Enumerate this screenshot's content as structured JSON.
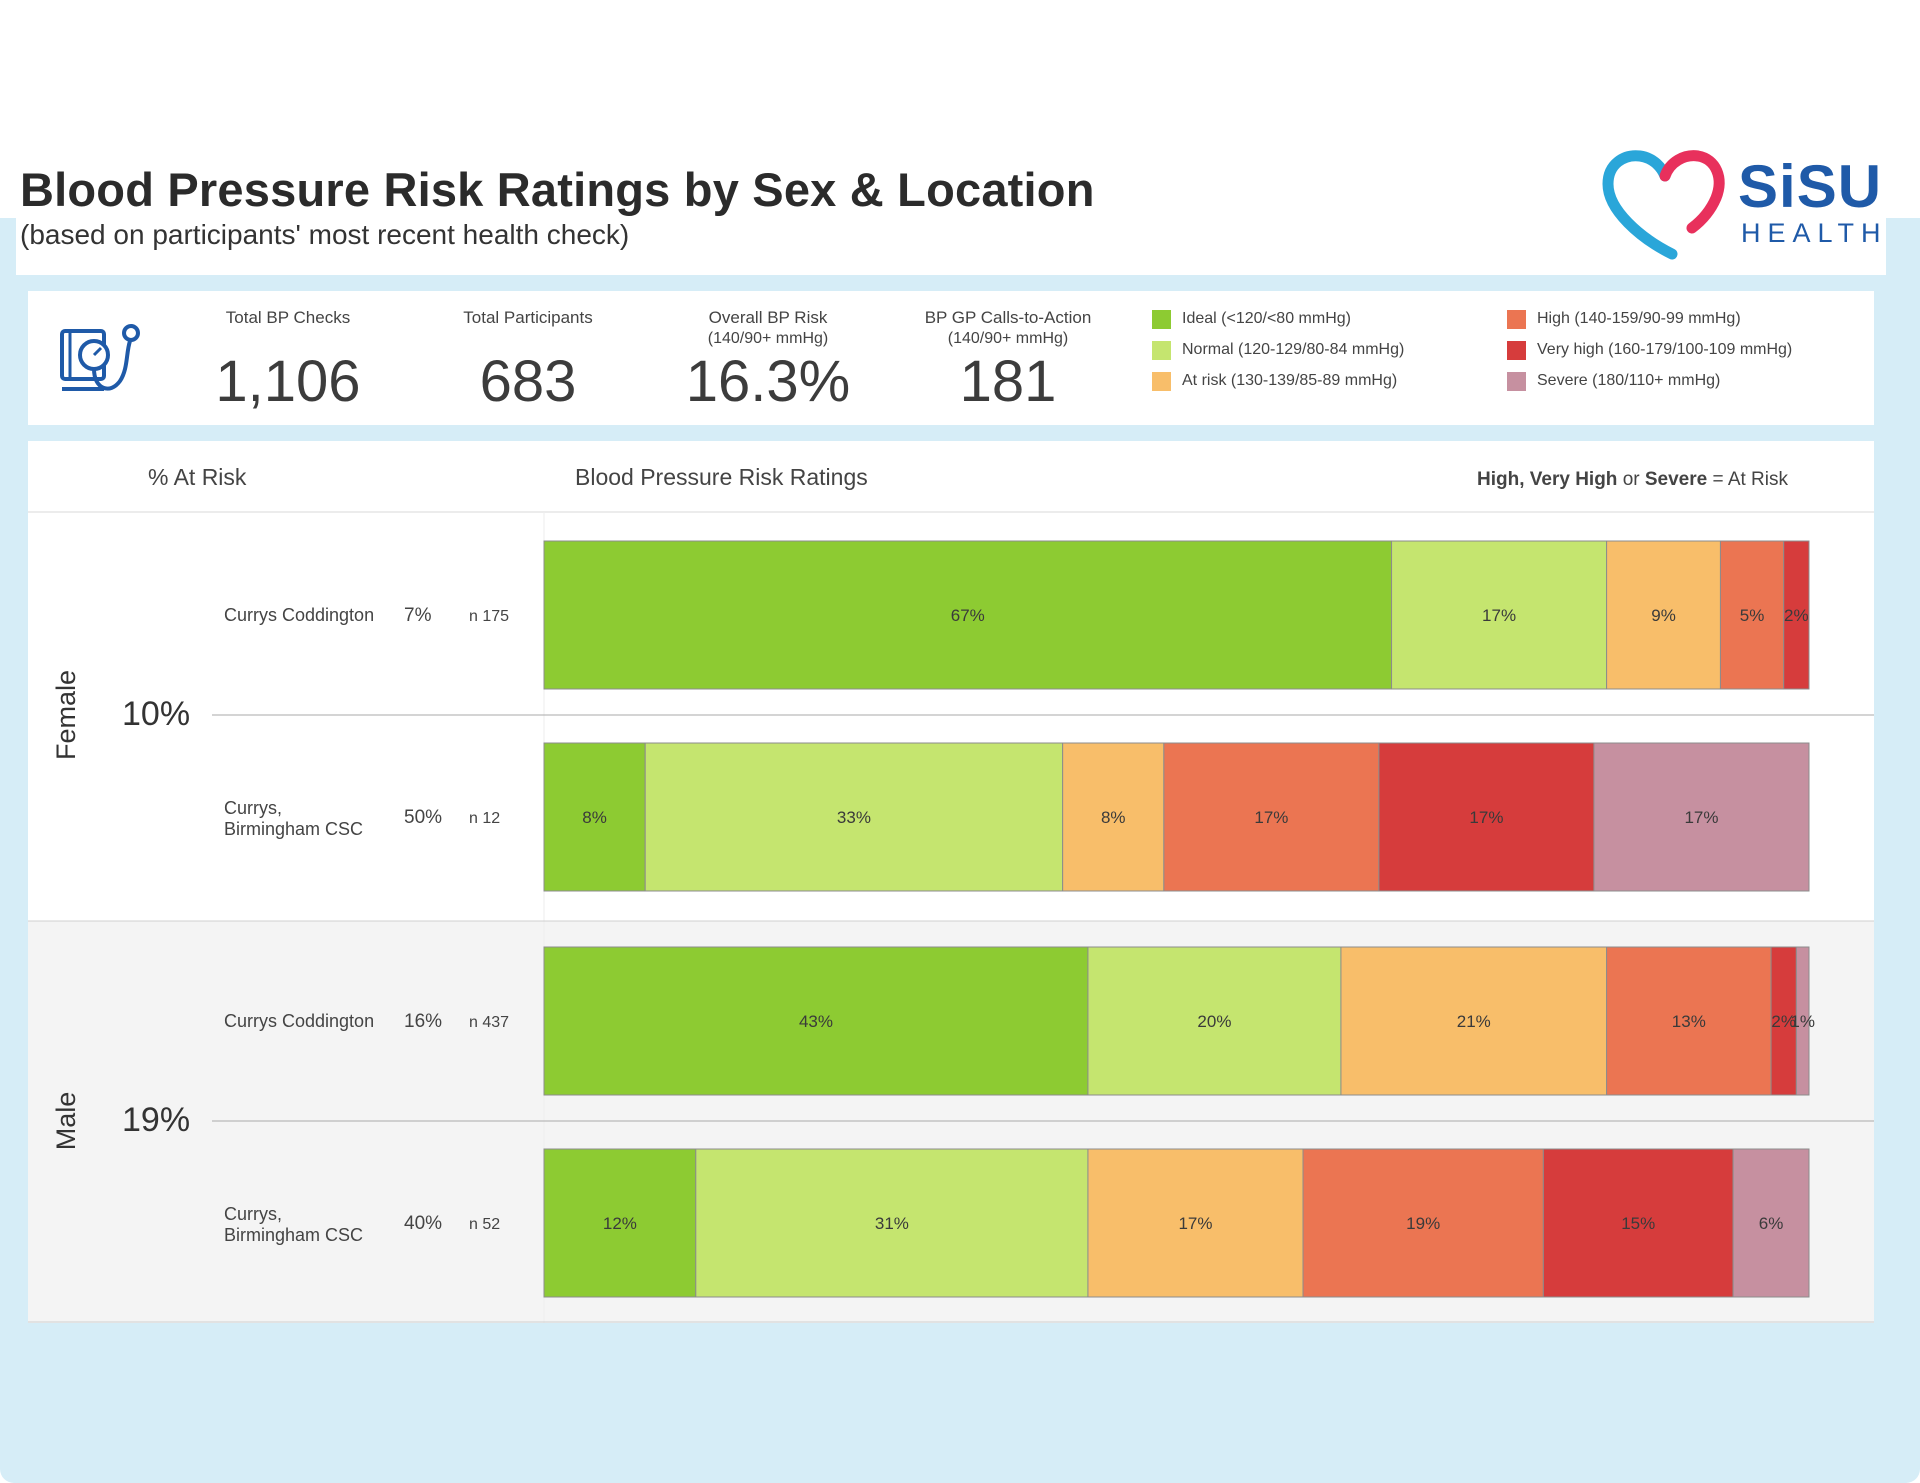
{
  "header": {
    "title": "Blood Pressure Risk Ratings by Sex & Location",
    "subtitle": "(based on participants' most recent health check)",
    "logo_brand": "SiSU",
    "logo_sub": "HEALTH"
  },
  "kpis": [
    {
      "label": "Total BP Checks",
      "sublabel": "",
      "value": "1,106"
    },
    {
      "label": "Total Participants",
      "sublabel": "",
      "value": "683"
    },
    {
      "label": "Overall BP Risk",
      "sublabel": "(140/90+ mmHg)",
      "value": "16.3%"
    },
    {
      "label": "BP GP Calls-to-Action",
      "sublabel": "(140/90+ mmHg)",
      "value": "181"
    }
  ],
  "legend": [
    {
      "label": "Ideal (<120/<80 mmHg)",
      "color": "#8dcb32"
    },
    {
      "label": "Normal (120-129/80-84 mmHg)",
      "color": "#c5e56f"
    },
    {
      "label": "At risk (130-139/85-89 mmHg)",
      "color": "#f8be6a"
    },
    {
      "label": "High (140-159/90-99 mmHg)",
      "color": "#eb7552"
    },
    {
      "label": "Very high (160-179/100-109 mmHg)",
      "color": "#d63c3c"
    },
    {
      "label": "Severe (180/110+ mmHg)",
      "color": "#c690a0"
    }
  ],
  "chart_header": {
    "risk_col": "% At Risk",
    "ratings_col": "Blood Pressure Risk Ratings",
    "note_high": "High, ",
    "note_very": "Very High",
    "note_or": " or ",
    "note_severe": "Severe",
    "note_rest": " = At Risk"
  },
  "chart_data": {
    "type": "bar",
    "orientation": "horizontal",
    "stacked": true,
    "normalized": true,
    "title": "Blood Pressure Risk Ratings",
    "categories": [
      "Ideal",
      "Normal",
      "At risk",
      "High",
      "Very high",
      "Severe"
    ],
    "colors": [
      "#8dcb32",
      "#c5e56f",
      "#f8be6a",
      "#eb7552",
      "#d63c3c",
      "#c690a0"
    ],
    "groups": [
      {
        "sex": "Female",
        "risk": "10%",
        "rows": [
          {
            "location": [
              "Currys Coddington"
            ],
            "risk": "7%",
            "n": "n 175",
            "values": [
              67,
              17,
              9,
              5,
              2,
              0
            ]
          },
          {
            "location": [
              "Currys,",
              "Birmingham CSC"
            ],
            "risk": "50%",
            "n": "n 12",
            "values": [
              8,
              33,
              8,
              17,
              17,
              17
            ]
          }
        ]
      },
      {
        "sex": "Male",
        "risk": "19%",
        "rows": [
          {
            "location": [
              "Currys Coddington"
            ],
            "risk": "16%",
            "n": "n 437",
            "values": [
              43,
              20,
              21,
              13,
              2,
              1
            ]
          },
          {
            "location": [
              "Currys,",
              "Birmingham CSC"
            ],
            "risk": "40%",
            "n": "n 52",
            "values": [
              12,
              31,
              17,
              19,
              15,
              6
            ]
          }
        ]
      }
    ]
  }
}
